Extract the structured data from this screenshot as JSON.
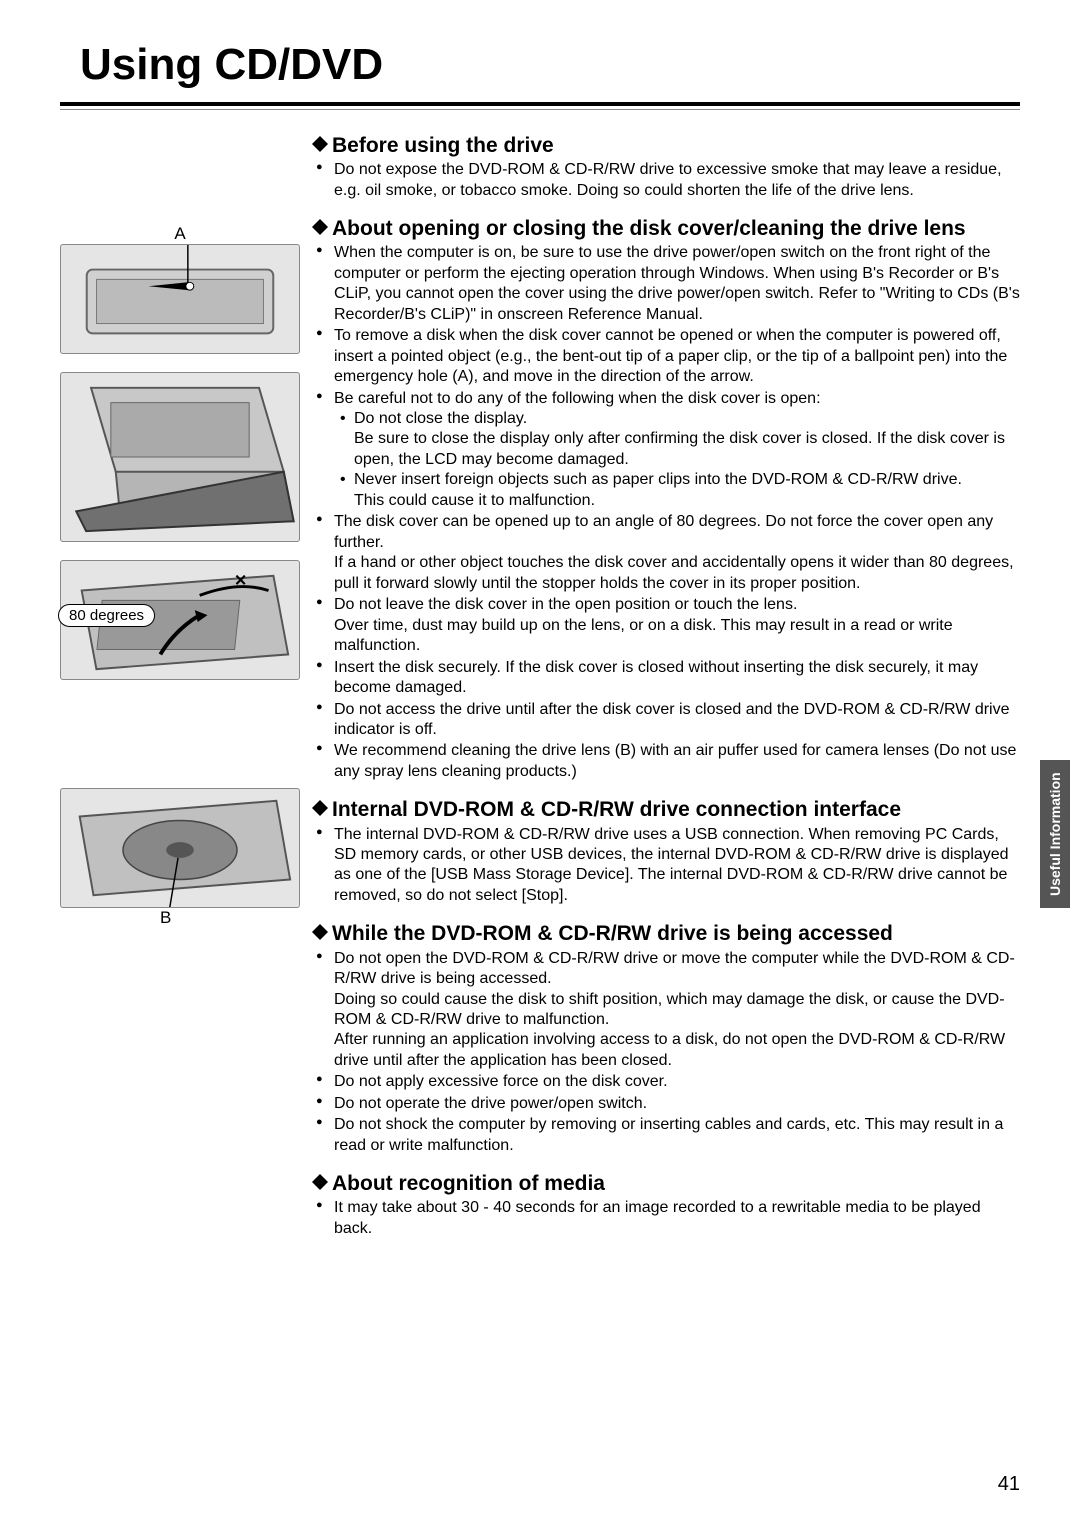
{
  "page": {
    "title": "Using CD/DVD",
    "number": "41",
    "sideTab": "Useful Information"
  },
  "figures": {
    "a": {
      "label": "A"
    },
    "b": {
      "label": "B",
      "badge": "80 degrees"
    },
    "c": {
      "label": "B"
    }
  },
  "sections": [
    {
      "heading": "Before using the drive",
      "items": [
        {
          "text": "Do not expose the DVD-ROM & CD-R/RW drive to excessive smoke that may leave a residue, e.g. oil smoke, or tobacco smoke. Doing so could shorten the life of the drive lens."
        }
      ]
    },
    {
      "heading": "About opening or closing the disk cover/cleaning the drive lens",
      "items": [
        {
          "text": "When the computer is on, be sure to use the drive power/open switch on the front right of the computer or perform the ejecting operation through Windows. When using B's Recorder or B's CLiP, you cannot open the cover using the drive power/open switch. Refer to \"Writing to CDs (B's Recorder/B's CLiP)\" in onscreen Reference Manual."
        },
        {
          "text": "To remove a disk when the disk cover cannot be opened or when the computer is powered off, insert a pointed object (e.g., the bent-out tip of a paper clip, or the tip of a ballpoint pen) into the emergency hole (A), and move in the direction of the arrow."
        },
        {
          "text": "Be careful not to do any of the following when the disk cover is open:",
          "subs": [
            "Do not close the display.\nBe sure to close the display only after confirming the disk cover is closed. If the disk cover is open, the LCD may become damaged.",
            "Never insert foreign objects such as paper clips into the DVD-ROM & CD-R/RW drive.\nThis could cause it to malfunction."
          ]
        },
        {
          "text": "The disk cover can be opened up to an angle of 80 degrees. Do not force the cover open any further.\nIf a hand or other object touches the disk cover and accidentally opens it wider than 80 degrees, pull it forward slowly until the stopper holds the cover in its proper position."
        },
        {
          "text": "Do not leave the disk cover in the open position or touch the lens.\nOver time, dust may build up on the lens, or on a disk. This may result in a read or write malfunction."
        },
        {
          "text": "Insert the disk securely. If the disk cover is closed without inserting the disk securely, it may become damaged."
        },
        {
          "text": "Do not access the drive until after the disk cover is closed and the DVD-ROM & CD-R/RW drive indicator is off."
        },
        {
          "text": "We recommend cleaning the drive lens (B) with an air puffer used for camera lenses (Do not use any spray lens cleaning products.)"
        }
      ]
    },
    {
      "heading": "Internal DVD-ROM & CD-R/RW drive connection interface",
      "items": [
        {
          "text": "The internal DVD-ROM & CD-R/RW drive uses a USB connection. When removing PC Cards, SD memory cards, or other USB devices, the internal DVD-ROM & CD-R/RW drive is displayed as one of the [USB Mass Storage Device]. The internal DVD-ROM & CD-R/RW drive cannot be removed, so do not select [Stop]."
        }
      ]
    },
    {
      "heading": "While the DVD-ROM & CD-R/RW drive is being accessed",
      "items": [
        {
          "text": "Do not open the DVD-ROM & CD-R/RW drive or move the computer while the DVD-ROM & CD-R/RW drive is being accessed.\nDoing so could cause the disk to shift position, which may damage the disk, or cause the DVD-ROM & CD-R/RW drive to malfunction.\nAfter running an application involving access to a disk, do not open the DVD-ROM & CD-R/RW drive until after the application has been closed."
        },
        {
          "text": "Do not apply excessive force on the disk cover."
        },
        {
          "text": "Do not operate the drive power/open switch."
        },
        {
          "text": "Do not shock the computer by removing or inserting cables and cards, etc. This may result in a read or write malfunction."
        }
      ]
    },
    {
      "heading": "About recognition of media",
      "items": [
        {
          "text": "It may take about 30 - 40 seconds for an image recorded to a rewritable media to be played back."
        }
      ]
    }
  ],
  "style": {
    "colors": {
      "text": "#000000",
      "bg": "#ffffff",
      "rule": "#000000",
      "figBg": "#e5e5e5",
      "figBorder": "#888888",
      "tabBg": "#555555",
      "tabText": "#ffffff"
    },
    "fonts": {
      "title_pt": 44,
      "heading_pt": 21,
      "body_pt": 16,
      "tab_pt": 14,
      "pagenum_pt": 20
    }
  }
}
